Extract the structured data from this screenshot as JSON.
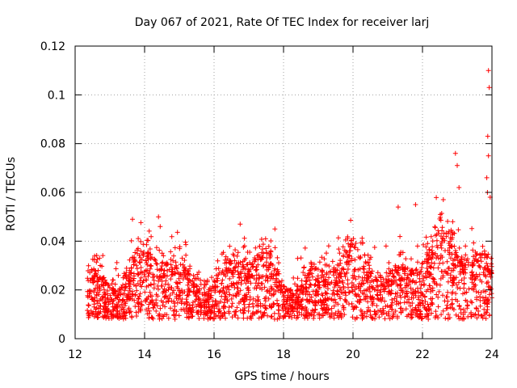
{
  "chart_data": {
    "type": "scatter",
    "title": "Day 067 of 2021, Rate Of TEC Index for receiver larj",
    "xlabel": "GPS time / hours",
    "ylabel": "ROTI / TECUs",
    "xlim": [
      12,
      24
    ],
    "ylim": [
      0,
      0.12
    ],
    "xticks": [
      12,
      14,
      16,
      18,
      20,
      22,
      24
    ],
    "xtick_labels": [
      "12",
      "14",
      "16",
      "18",
      "20",
      "22",
      "24"
    ],
    "yticks": [
      0,
      0.02,
      0.04,
      0.06,
      0.08,
      0.1,
      0.12
    ],
    "ytick_labels": [
      "0",
      "0.02",
      "0.04",
      "0.06",
      "0.08",
      "0.1",
      "0.12"
    ],
    "grid": true,
    "marker": "+",
    "color": "#ff0000",
    "data_range_x": [
      12.35,
      24.0
    ],
    "typical_band_y": [
      0.005,
      0.035
    ],
    "outliers": [
      {
        "x": 13.65,
        "y": 0.049
      },
      {
        "x": 14.4,
        "y": 0.05
      },
      {
        "x": 14.45,
        "y": 0.046
      },
      {
        "x": 16.75,
        "y": 0.047
      },
      {
        "x": 17.75,
        "y": 0.045
      },
      {
        "x": 21.3,
        "y": 0.054
      },
      {
        "x": 21.8,
        "y": 0.055
      },
      {
        "x": 22.6,
        "y": 0.057
      },
      {
        "x": 22.95,
        "y": 0.076
      },
      {
        "x": 23.0,
        "y": 0.071
      },
      {
        "x": 23.05,
        "y": 0.062
      },
      {
        "x": 23.9,
        "y": 0.11
      },
      {
        "x": 23.92,
        "y": 0.103
      },
      {
        "x": 23.88,
        "y": 0.083
      },
      {
        "x": 23.9,
        "y": 0.075
      },
      {
        "x": 23.85,
        "y": 0.066
      },
      {
        "x": 23.87,
        "y": 0.06
      },
      {
        "x": 23.95,
        "y": 0.058
      }
    ]
  }
}
